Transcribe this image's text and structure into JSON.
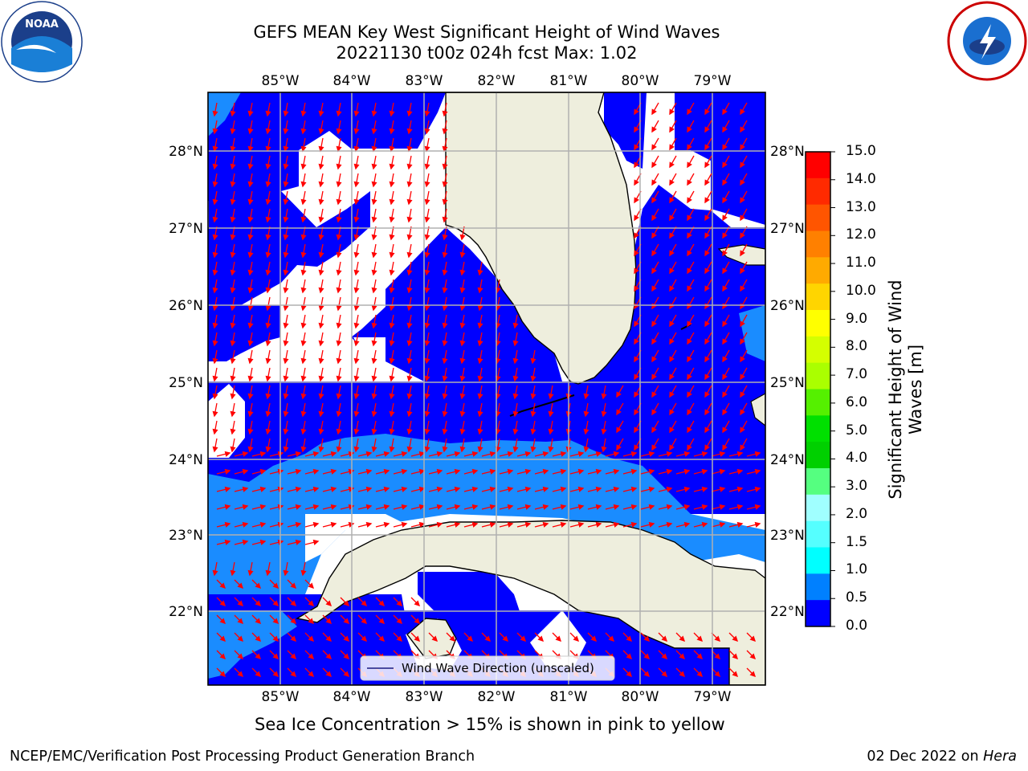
{
  "title_line1": "GEFS MEAN Key West Significant Height of Wind Waves",
  "title_line2": "20221130 t00z 024h fcst   Max: 1.02",
  "lon_labels": [
    "85°W",
    "84°W",
    "83°W",
    "82°W",
    "81°W",
    "80°W",
    "79°W"
  ],
  "lat_labels": [
    "28°N",
    "27°N",
    "26°N",
    "25°N",
    "24°N",
    "23°N",
    "22°N"
  ],
  "legend_label": "Wind Wave Direction (unscaled)",
  "colorbar": {
    "title_line1": "Significant Height of Wind",
    "title_line2": "Waves [m]",
    "ticks": [
      "15.0",
      "14.0",
      "13.0",
      "12.0",
      "11.0",
      "10.0",
      "9.0",
      "8.0",
      "7.0",
      "6.0",
      "5.0",
      "4.0",
      "3.0",
      "2.0",
      "1.5",
      "1.0",
      "0.5",
      "0.0"
    ],
    "colors": [
      "#ff0000",
      "#ff2a00",
      "#ff5500",
      "#ff8000",
      "#ffaa00",
      "#ffd500",
      "#ffff00",
      "#d4ff00",
      "#aaff00",
      "#55f000",
      "#00e000",
      "#00d000",
      "#55ff80",
      "#a0ffff",
      "#55ffff",
      "#00ffff",
      "#0080ff",
      "#0000ff"
    ]
  },
  "sea_ice_caption": "Sea Ice Concentration > 15% is shown in pink to yellow",
  "footer_left": "NCEP/EMC/Verification Post Processing Product Generation Branch",
  "footer_right_date": "02 Dec 2022 on",
  "footer_right_host": "Hera",
  "colors": {
    "low_wave": "#0000ff",
    "mid_wave": "#1a8cff",
    "land": "#eeeedd",
    "arrow": "#ff0000",
    "grid": "#b0b0b0"
  }
}
